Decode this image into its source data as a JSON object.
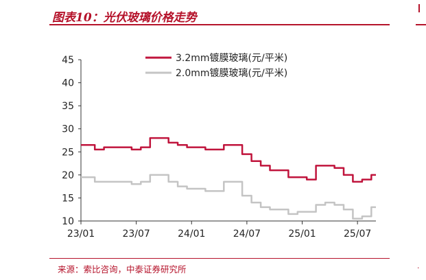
{
  "figure": {
    "title": "图表10：光伏玻璃价格走势",
    "source": "来源：索比咨询，中泰证券研究所"
  },
  "chart_data": {
    "type": "line",
    "title": "图表10：光伏玻璃价格走势",
    "xlabel": "",
    "ylabel": "",
    "x_ticks": [
      "23/01",
      "23/07",
      "24/01",
      "24/07",
      "25/01",
      "25/07"
    ],
    "y_ticks": [
      10,
      15,
      20,
      25,
      30,
      35,
      40,
      45
    ],
    "ylim": [
      10,
      45
    ],
    "xlim": [
      "2023-01",
      "2025-09"
    ],
    "grid": false,
    "legend_position": "top-center",
    "series": [
      {
        "name": "3.2mm镀膜玻璃(元/平米)",
        "color": "#c0143c",
        "points": [
          [
            "2023-01",
            26.5
          ],
          [
            "2023-02",
            26.5
          ],
          [
            "2023-03",
            25.5
          ],
          [
            "2023-04",
            26.0
          ],
          [
            "2023-05",
            26.0
          ],
          [
            "2023-06",
            26.0
          ],
          [
            "2023-07",
            25.5
          ],
          [
            "2023-08",
            26.0
          ],
          [
            "2023-09",
            28.0
          ],
          [
            "2023-10",
            28.0
          ],
          [
            "2023-11",
            27.0
          ],
          [
            "2023-12",
            26.5
          ],
          [
            "2024-01",
            26.0
          ],
          [
            "2024-02",
            26.0
          ],
          [
            "2024-03",
            25.5
          ],
          [
            "2024-04",
            25.5
          ],
          [
            "2024-05",
            26.5
          ],
          [
            "2024-06",
            26.5
          ],
          [
            "2024-07",
            24.5
          ],
          [
            "2024-08",
            23.0
          ],
          [
            "2024-09",
            22.0
          ],
          [
            "2024-10",
            21.0
          ],
          [
            "2024-11",
            21.0
          ],
          [
            "2024-12",
            19.5
          ],
          [
            "2025-01",
            19.5
          ],
          [
            "2025-02",
            19.0
          ],
          [
            "2025-03",
            22.0
          ],
          [
            "2025-04",
            22.0
          ],
          [
            "2025-05",
            21.5
          ],
          [
            "2025-06",
            20.0
          ],
          [
            "2025-07",
            18.5
          ],
          [
            "2025-08",
            19.0
          ],
          [
            "2025-09",
            20.0
          ]
        ]
      },
      {
        "name": "2.0mm镀膜玻璃(元/平米)",
        "color": "#c4c4c4",
        "points": [
          [
            "2023-01",
            19.5
          ],
          [
            "2023-02",
            19.5
          ],
          [
            "2023-03",
            18.5
          ],
          [
            "2023-04",
            18.5
          ],
          [
            "2023-05",
            18.5
          ],
          [
            "2023-06",
            18.5
          ],
          [
            "2023-07",
            18.0
          ],
          [
            "2023-08",
            18.5
          ],
          [
            "2023-09",
            20.0
          ],
          [
            "2023-10",
            20.0
          ],
          [
            "2023-11",
            18.5
          ],
          [
            "2023-12",
            17.5
          ],
          [
            "2024-01",
            17.0
          ],
          [
            "2024-02",
            17.0
          ],
          [
            "2024-03",
            16.5
          ],
          [
            "2024-04",
            16.5
          ],
          [
            "2024-05",
            18.5
          ],
          [
            "2024-06",
            18.5
          ],
          [
            "2024-07",
            15.5
          ],
          [
            "2024-08",
            14.0
          ],
          [
            "2024-09",
            13.0
          ],
          [
            "2024-10",
            12.5
          ],
          [
            "2024-11",
            12.5
          ],
          [
            "2024-12",
            11.5
          ],
          [
            "2025-01",
            12.0
          ],
          [
            "2025-02",
            12.0
          ],
          [
            "2025-03",
            13.5
          ],
          [
            "2025-04",
            14.0
          ],
          [
            "2025-05",
            13.5
          ],
          [
            "2025-06",
            12.5
          ],
          [
            "2025-07",
            10.5
          ],
          [
            "2025-08",
            11.0
          ],
          [
            "2025-09",
            13.0
          ]
        ]
      }
    ]
  }
}
